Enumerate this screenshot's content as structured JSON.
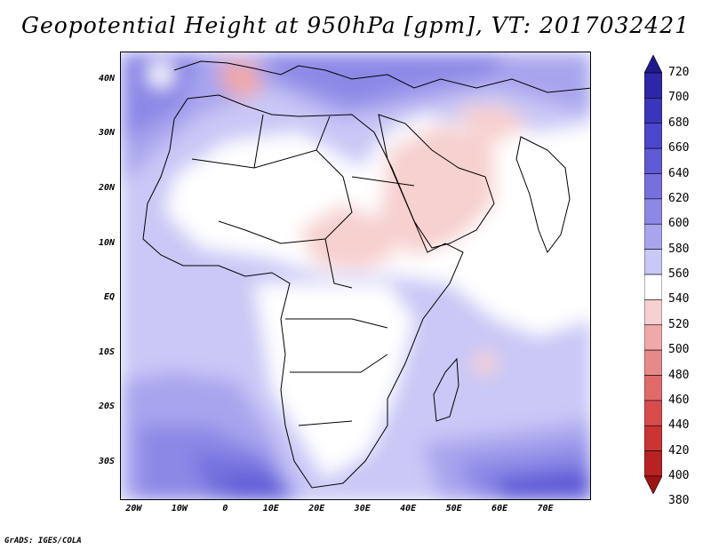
{
  "title": "Geopotential Height at 950hPa [gpm], VT: 2017032421",
  "credit": "GrADS: IGES/COLA",
  "map": {
    "lat_labels": [
      "40N",
      "30N",
      "20N",
      "10N",
      "EQ",
      "10S",
      "20S",
      "30S"
    ],
    "lat_values": [
      40,
      30,
      20,
      10,
      0,
      -10,
      -20,
      -30
    ],
    "lon_labels": [
      "20W",
      "10W",
      "0",
      "10E",
      "20E",
      "30E",
      "40E",
      "50E",
      "60E",
      "70E"
    ],
    "lon_values": [
      -20,
      -10,
      0,
      10,
      20,
      30,
      40,
      50,
      60,
      70
    ],
    "lon_range": [
      -23,
      80
    ],
    "lat_range": [
      -37,
      45
    ]
  },
  "colorbar": {
    "levels": [
      720,
      700,
      680,
      660,
      640,
      620,
      600,
      580,
      560,
      540,
      520,
      500,
      480,
      460,
      440,
      420,
      400,
      380
    ],
    "colors": [
      "#1e1a8c",
      "#2b27a6",
      "#3a36bb",
      "#4b47cc",
      "#5f5ad6",
      "#7570de",
      "#8c88e6",
      "#a8a5ee",
      "#c9c8f6",
      "#ffffff",
      "#f7d0d0",
      "#f0a9a9",
      "#e88989",
      "#e06a6a",
      "#d84c4c",
      "#cc3434",
      "#b82222",
      "#9e1414"
    ]
  }
}
